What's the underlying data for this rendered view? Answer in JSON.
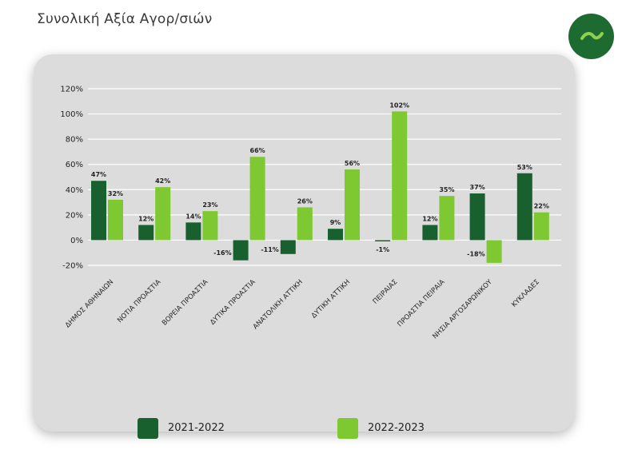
{
  "page": {
    "title": "Συνολική Αξία Αγορ/σιών"
  },
  "colors": {
    "series_2021_2022": "#19602f",
    "series_2022_2023": "#7ec832",
    "logo": "#1d6b31",
    "card": "#dcdcdc",
    "grid": "#ffffff"
  },
  "legend": {
    "item_1": "2021-2022",
    "item_2": "2022-2023"
  },
  "chart_data": {
    "type": "bar",
    "title": "Συνολική Αξία Αγορ/σιών",
    "xlabel": "",
    "ylabel": "",
    "ylim": [
      -20,
      120
    ],
    "y_ticks": [
      -20,
      0,
      20,
      40,
      60,
      80,
      100,
      120
    ],
    "y_tick_labels": [
      "-20%",
      "0%",
      "20%",
      "40%",
      "60%",
      "80%",
      "100%",
      "120%"
    ],
    "grid": true,
    "legend_position": "bottom",
    "categories": [
      "ΔΗΜΟΣ ΑΘΗΝΑΙΩΝ",
      "ΝΟΤΙΑ ΠΡΟΑΣΤΙΑ",
      "ΒΟΡΕΙΑ ΠΡΟΑΣΤΙΑ",
      "ΔΥΤΙΚΑ ΠΡΟΑΣΤΙΑ",
      "ΑΝΑΤΟΛΙΚΗ ΑΤΤΙΚΗ",
      "ΔΥΤΙΚΗ ΑΤΤΙΚΗ",
      "ΠΕΙΡΑΙΑΣ",
      "ΠΡΟΑΣΤΙΑ ΠΕΙΡΑΙΑ",
      "ΝΗΣΙΑ ΑΡΓΟΣΑΡΩΝΙΚΟΥ",
      "ΚΥΚΛΑΔΕΣ"
    ],
    "series": [
      {
        "name": "2021-2022",
        "values": [
          47,
          12,
          14,
          -16,
          -11,
          9,
          -1,
          12,
          37,
          53
        ],
        "labels": [
          "47%",
          "12%",
          "14%",
          "-16%",
          "-11%",
          "9%",
          "-1%",
          "12%",
          "37%",
          "53%"
        ]
      },
      {
        "name": "2022-2023",
        "values": [
          32,
          42,
          23,
          66,
          26,
          56,
          102,
          35,
          -18,
          22
        ],
        "labels": [
          "32%",
          "42%",
          "23%",
          "66%",
          "26%",
          "56%",
          "102%",
          "35%",
          "-18%",
          "22%"
        ]
      }
    ]
  }
}
